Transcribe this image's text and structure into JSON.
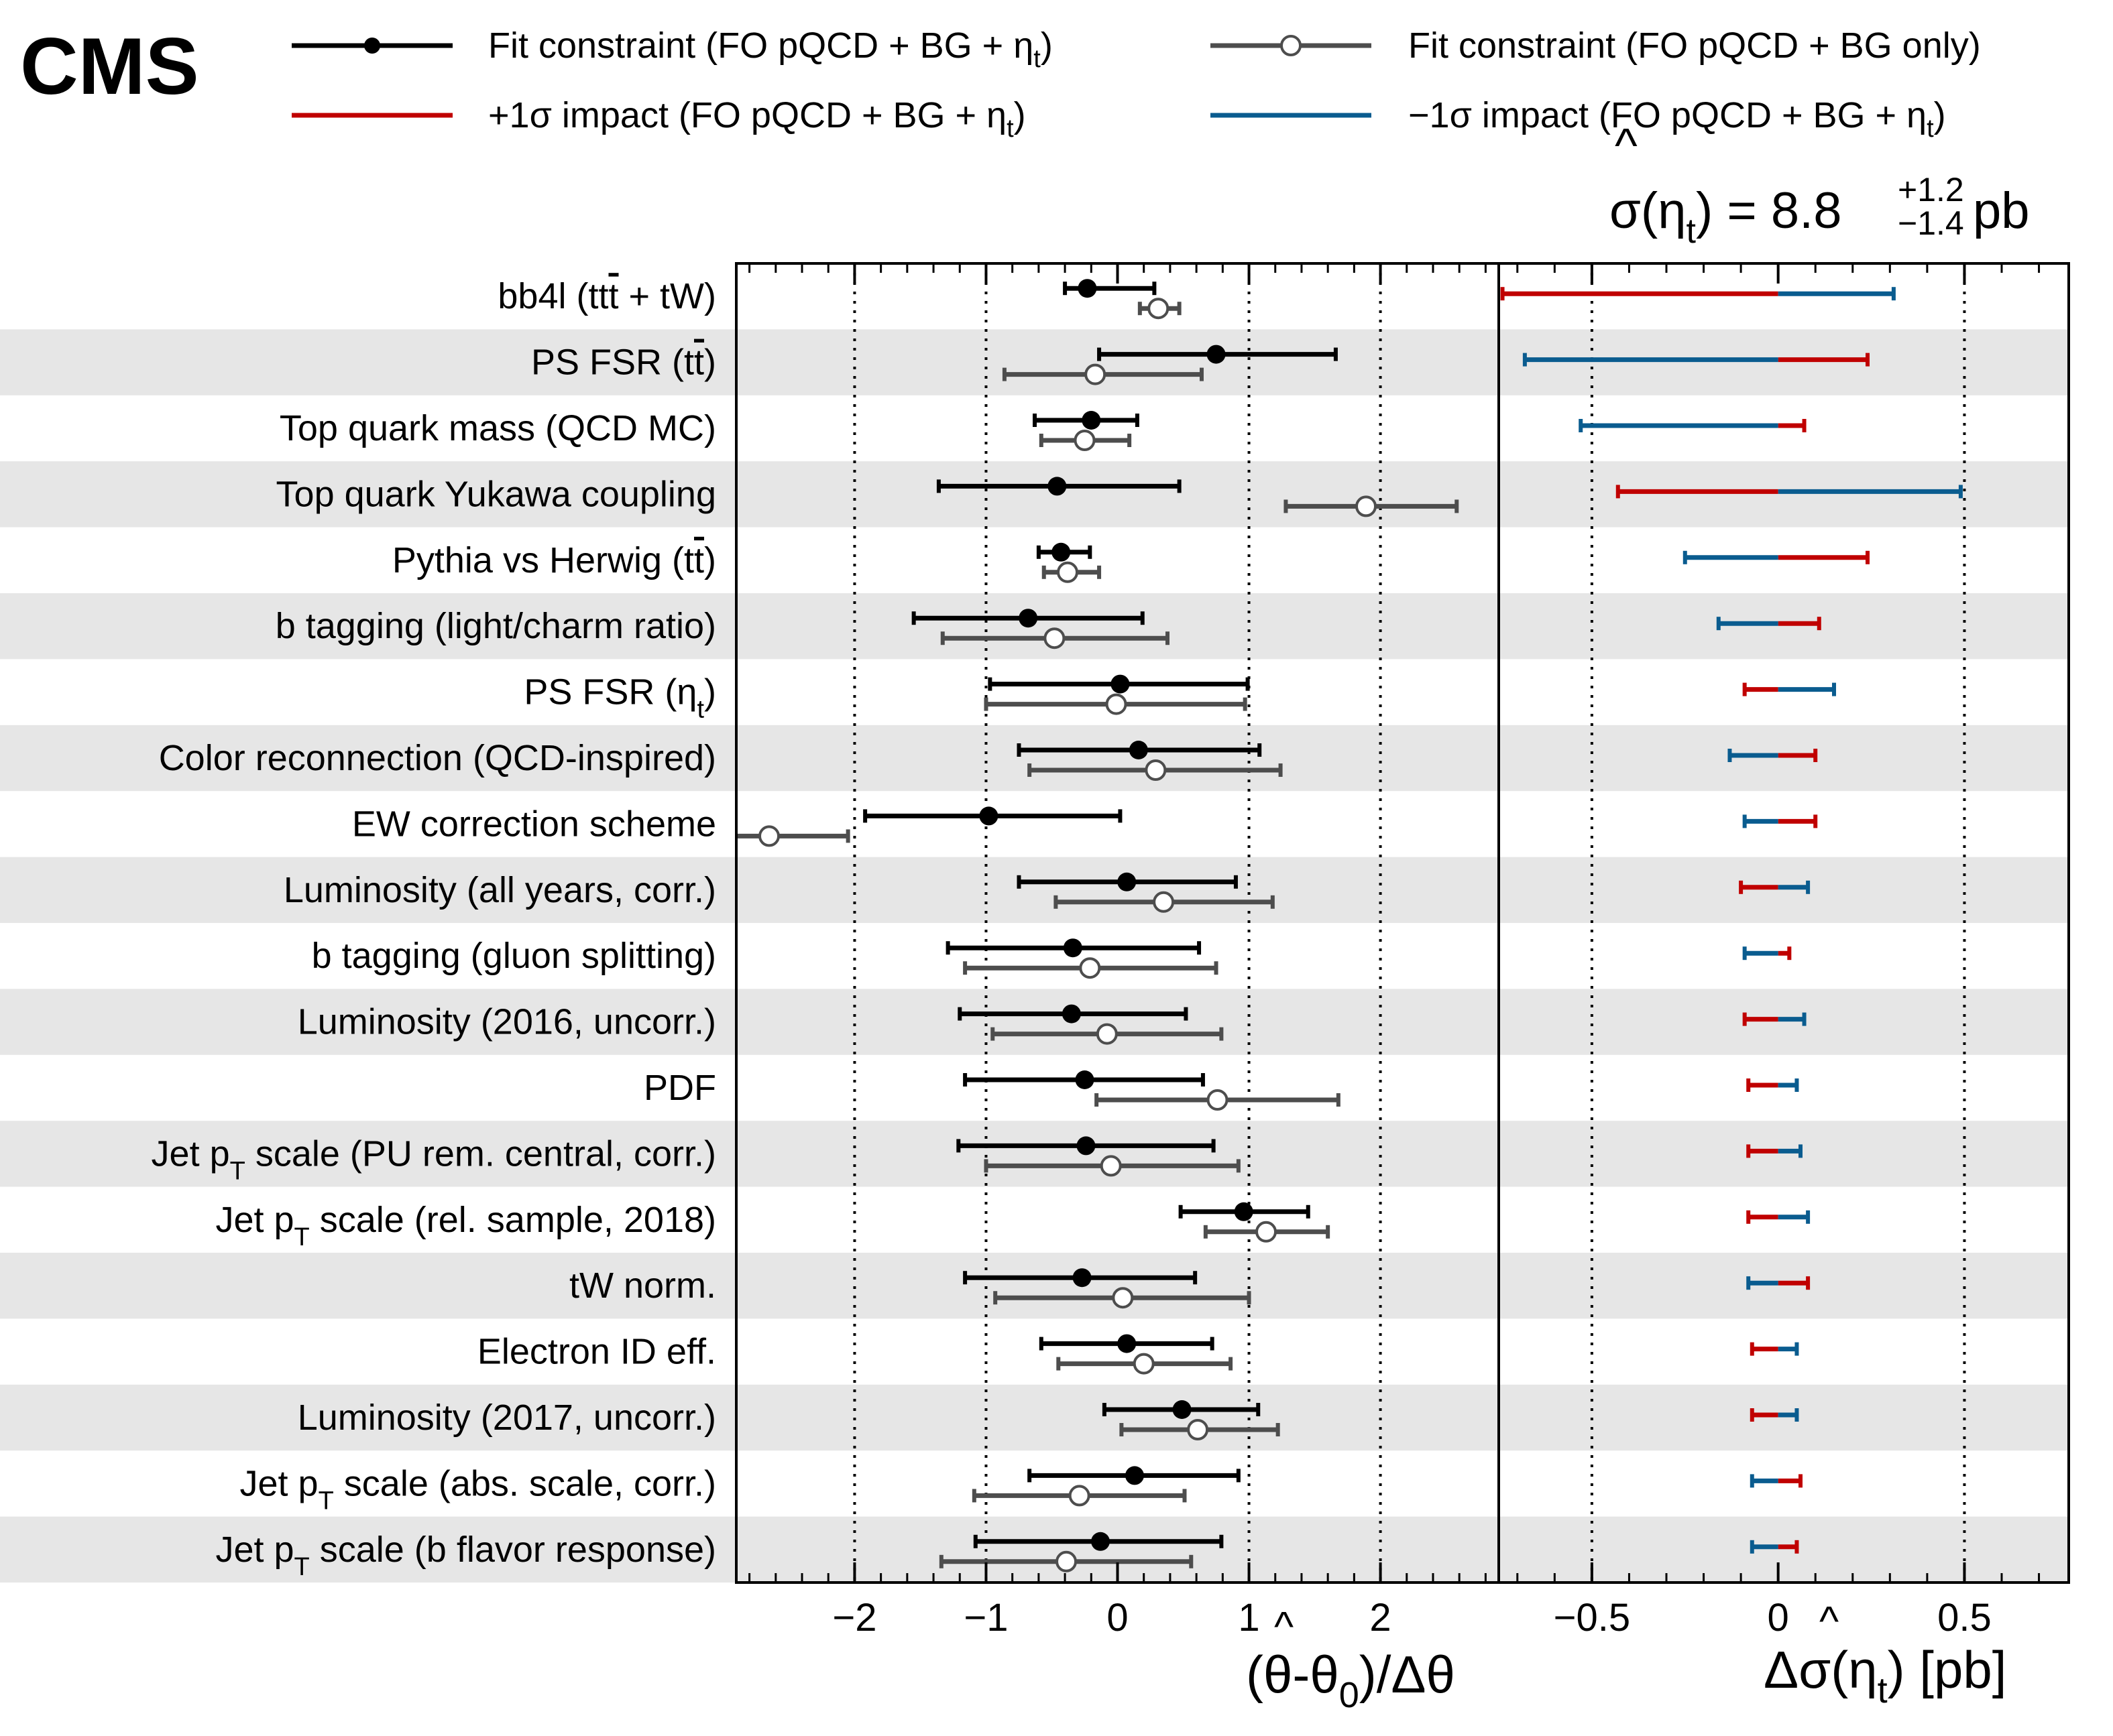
{
  "logo": "CMS",
  "legend": {
    "fit_with_eta": "Fit constraint (FO pQCD + BG + η",
    "fit_bg_only": "Fit constraint (FO pQCD + BG only)",
    "plus_impact": "+1σ impact (FO pQCD + BG + η",
    "minus_impact": "−1σ impact (FO pQCD + BG + η",
    "eta_sub": "t",
    "close": ")"
  },
  "result": {
    "prefix": "σ(η",
    "sub": "t",
    "mid": ") = 8.8",
    "up": "+1.2",
    "down": "−1.4",
    "unit": " pb"
  },
  "colors": {
    "fit_with_eta": "#000000",
    "fit_bg_only": "#4d4d4d",
    "plus_impact": "#c00000",
    "minus_impact": "#0a5c8f",
    "band": "#e6e6e6"
  },
  "chart_data": [
    {
      "type": "scatter",
      "panel": "pulls",
      "xlabel_parts": [
        "(θ",
        "-θ",
        "0",
        ")/Δθ"
      ],
      "xlim": [
        -2.9,
        2.9
      ],
      "x_ticks": [
        "−2",
        "−1",
        "0",
        "1",
        "2"
      ],
      "x_tick_values": [
        -2,
        -1,
        0,
        1,
        2
      ],
      "grid_lines_at": [
        -2,
        -1,
        1,
        2
      ],
      "series": [
        {
          "name": "Fit constraint (FO pQCD + BG + ηt)",
          "points": [
            {
              "x": -0.23,
              "lo": -0.4,
              "hi": 0.28
            },
            {
              "x": 0.75,
              "lo": -0.14,
              "hi": 1.66
            },
            {
              "x": -0.2,
              "lo": -0.63,
              "hi": 0.15
            },
            {
              "x": -0.46,
              "lo": -1.36,
              "hi": 0.47
            },
            {
              "x": -0.43,
              "lo": -0.6,
              "hi": -0.21
            },
            {
              "x": -0.68,
              "lo": -1.55,
              "hi": 0.19
            },
            {
              "x": 0.02,
              "lo": -0.97,
              "hi": 0.99
            },
            {
              "x": 0.16,
              "lo": -0.75,
              "hi": 1.08
            },
            {
              "x": -0.98,
              "lo": -1.92,
              "hi": 0.02
            },
            {
              "x": 0.07,
              "lo": -0.75,
              "hi": 0.9
            },
            {
              "x": -0.34,
              "lo": -1.29,
              "hi": 0.62
            },
            {
              "x": -0.35,
              "lo": -1.2,
              "hi": 0.52
            },
            {
              "x": -0.25,
              "lo": -1.16,
              "hi": 0.65
            },
            {
              "x": -0.24,
              "lo": -1.21,
              "hi": 0.73
            },
            {
              "x": 0.96,
              "lo": 0.48,
              "hi": 1.45
            },
            {
              "x": -0.27,
              "lo": -1.16,
              "hi": 0.59
            },
            {
              "x": 0.07,
              "lo": -0.58,
              "hi": 0.72
            },
            {
              "x": 0.49,
              "lo": -0.1,
              "hi": 1.07
            },
            {
              "x": 0.13,
              "lo": -0.67,
              "hi": 0.92
            },
            {
              "x": -0.13,
              "lo": -1.08,
              "hi": 0.79
            }
          ]
        },
        {
          "name": "Fit constraint (FO pQCD + BG only)",
          "points": [
            {
              "x": 0.31,
              "lo": 0.17,
              "hi": 0.47
            },
            {
              "x": -0.17,
              "lo": -0.86,
              "hi": 0.64
            },
            {
              "x": -0.25,
              "lo": -0.58,
              "hi": 0.09
            },
            {
              "x": 1.89,
              "lo": 1.28,
              "hi": 2.58
            },
            {
              "x": -0.38,
              "lo": -0.56,
              "hi": -0.14
            },
            {
              "x": -0.48,
              "lo": -1.33,
              "hi": 0.38
            },
            {
              "x": -0.01,
              "lo": -1.0,
              "hi": 0.97
            },
            {
              "x": 0.29,
              "lo": -0.67,
              "hi": 1.24
            },
            {
              "x": -2.65,
              "lo": -2.9,
              "hi": -2.05
            },
            {
              "x": 0.35,
              "lo": -0.47,
              "hi": 1.18
            },
            {
              "x": -0.21,
              "lo": -1.16,
              "hi": 0.75
            },
            {
              "x": -0.08,
              "lo": -0.95,
              "hi": 0.79
            },
            {
              "x": 0.76,
              "lo": -0.16,
              "hi": 1.68
            },
            {
              "x": -0.05,
              "lo": -1.0,
              "hi": 0.92
            },
            {
              "x": 1.13,
              "lo": 0.67,
              "hi": 1.6
            },
            {
              "x": 0.04,
              "lo": -0.93,
              "hi": 1.0
            },
            {
              "x": 0.2,
              "lo": -0.45,
              "hi": 0.86
            },
            {
              "x": 0.61,
              "lo": 0.03,
              "hi": 1.22
            },
            {
              "x": -0.29,
              "lo": -1.09,
              "hi": 0.51
            },
            {
              "x": -0.39,
              "lo": -1.34,
              "hi": 0.56
            }
          ]
        }
      ]
    },
    {
      "type": "bar",
      "panel": "impacts",
      "orientation": "horizontal",
      "xlabel_parts": [
        "Δσ(η",
        "t",
        ") [pb]"
      ],
      "xlim": [
        -0.75,
        0.78
      ],
      "x_ticks": [
        "−0.5",
        "0",
        "0.5"
      ],
      "x_tick_values": [
        -0.5,
        0,
        0.5
      ],
      "grid_lines_at": [
        -0.5,
        0.5
      ],
      "series": [
        {
          "name": "+1σ impact (FO pQCD + BG + ηt)",
          "values": [
            -0.74,
            0.24,
            0.07,
            -0.43,
            0.24,
            0.11,
            -0.09,
            0.1,
            0.1,
            -0.1,
            0.03,
            -0.09,
            -0.08,
            -0.08,
            -0.08,
            0.08,
            -0.07,
            -0.07,
            0.06,
            0.05
          ]
        },
        {
          "name": "−1σ impact (FO pQCD + BG + ηt)",
          "values": [
            0.31,
            -0.68,
            -0.53,
            0.49,
            -0.25,
            -0.16,
            0.15,
            -0.13,
            -0.09,
            0.08,
            -0.09,
            0.07,
            0.05,
            0.06,
            0.08,
            -0.08,
            0.05,
            0.05,
            -0.07,
            -0.07
          ]
        }
      ]
    }
  ],
  "nuisances": [
    {
      "text": "bb4l (tt",
      "tbar": "t",
      "post": " + tW)"
    },
    {
      "text": "PS FSR (t",
      "tbar": "t",
      "post": ")"
    },
    {
      "text": "Top quark mass (QCD MC)"
    },
    {
      "text": "Top quark Yukawa coupling"
    },
    {
      "text": "Pythia vs Herwig (t",
      "tbar": "t",
      "post": ")"
    },
    {
      "text": "b tagging (light/charm ratio)"
    },
    {
      "text": "PS FSR (η",
      "sub": "t",
      "post": ")"
    },
    {
      "text": "Color reconnection (QCD-inspired)"
    },
    {
      "text": "EW correction scheme"
    },
    {
      "text": "Luminosity (all years, corr.)"
    },
    {
      "text": "b tagging (gluon splitting)"
    },
    {
      "text": "Luminosity (2016, uncorr.)"
    },
    {
      "text": "PDF"
    },
    {
      "text": "Jet p",
      "sub": "T",
      "post": " scale (PU rem. central, corr.)"
    },
    {
      "text": "Jet p",
      "sub": "T",
      "post": " scale (rel. sample, 2018)"
    },
    {
      "text": "tW norm."
    },
    {
      "text": "Electron ID eff."
    },
    {
      "text": "Luminosity (2017, uncorr.)"
    },
    {
      "text": "Jet p",
      "sub": "T",
      "post": "  scale (abs. scale, corr.)"
    },
    {
      "text": "Jet p",
      "sub": "T",
      "post": " scale (b flavor response)"
    }
  ]
}
